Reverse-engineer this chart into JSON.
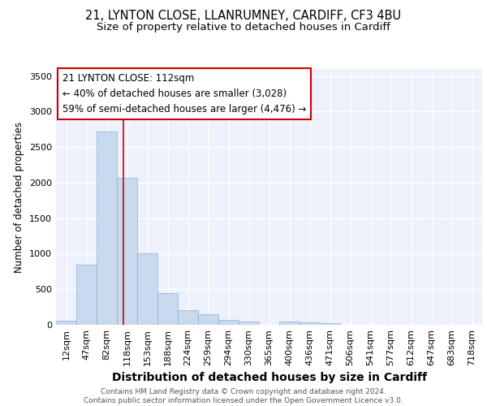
{
  "title1": "21, LYNTON CLOSE, LLANRUMNEY, CARDIFF, CF3 4BU",
  "title2": "Size of property relative to detached houses in Cardiff",
  "xlabel": "Distribution of detached houses by size in Cardiff",
  "ylabel": "Number of detached properties",
  "categories": [
    "12sqm",
    "47sqm",
    "82sqm",
    "118sqm",
    "153sqm",
    "188sqm",
    "224sqm",
    "259sqm",
    "294sqm",
    "330sqm",
    "365sqm",
    "400sqm",
    "436sqm",
    "471sqm",
    "506sqm",
    "541sqm",
    "577sqm",
    "612sqm",
    "647sqm",
    "683sqm",
    "718sqm"
  ],
  "values": [
    60,
    850,
    2720,
    2070,
    1010,
    450,
    210,
    150,
    65,
    50,
    0,
    45,
    35,
    25,
    0,
    0,
    0,
    0,
    0,
    0,
    0
  ],
  "bar_color": "#c9d9ee",
  "bar_edge_color": "#8ab0d8",
  "red_line_x": 2.83,
  "annotation_box_text": "21 LYNTON CLOSE: 112sqm\n← 40% of detached houses are smaller (3,028)\n59% of semi-detached houses are larger (4,476) →",
  "ylim": [
    0,
    3600
  ],
  "yticks": [
    0,
    500,
    1000,
    1500,
    2000,
    2500,
    3000,
    3500
  ],
  "background_color": "#edf1fb",
  "grid_color": "#ffffff",
  "footer_text": "Contains HM Land Registry data © Crown copyright and database right 2024.\nContains public sector information licensed under the Open Government Licence v3.0.",
  "annotation_box_color": "#ffffff",
  "annotation_box_edge_color": "#cc0000",
  "red_line_color": "#cc0000",
  "title1_fontsize": 10.5,
  "title2_fontsize": 9.5,
  "xlabel_fontsize": 10,
  "ylabel_fontsize": 8.5,
  "tick_fontsize": 8,
  "annotation_fontsize": 8.5,
  "footer_fontsize": 6.5
}
